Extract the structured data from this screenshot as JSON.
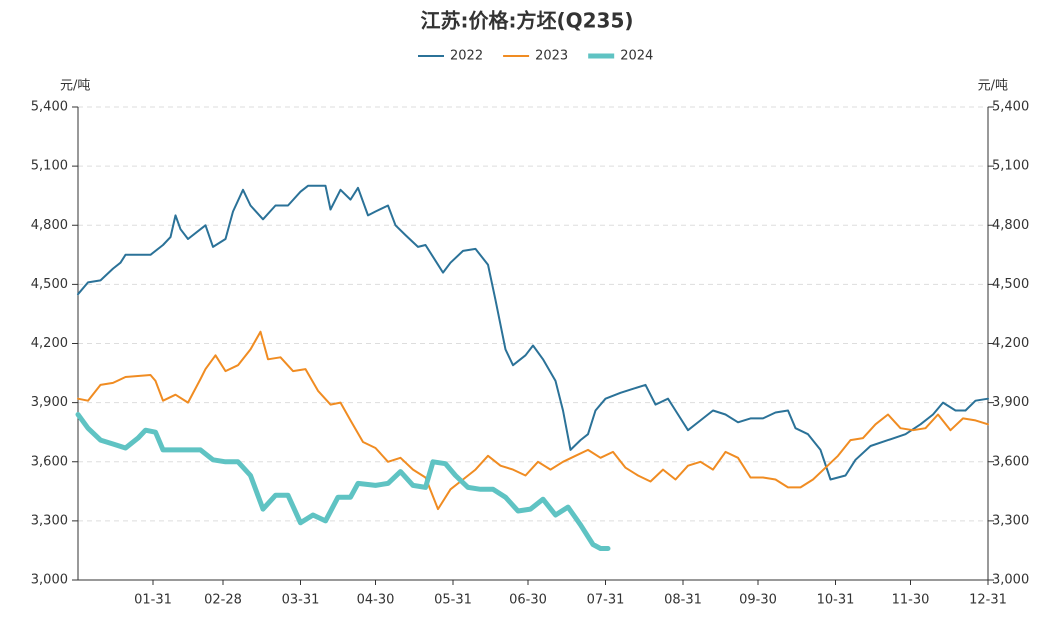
{
  "chart_data": {
    "type": "line",
    "title": "江苏:价格:方坯(Q235)",
    "y_label": "元/吨",
    "y2_label": "元/吨",
    "xlim": [
      1,
      365
    ],
    "xticks": [
      {
        "value": 31,
        "label": "01-31"
      },
      {
        "value": 59,
        "label": "02-28"
      },
      {
        "value": 90,
        "label": "03-31"
      },
      {
        "value": 120,
        "label": "04-30"
      },
      {
        "value": 151,
        "label": "05-31"
      },
      {
        "value": 181,
        "label": "06-30"
      },
      {
        "value": 212,
        "label": "07-31"
      },
      {
        "value": 243,
        "label": "08-31"
      },
      {
        "value": 273,
        "label": "09-30"
      },
      {
        "value": 304,
        "label": "10-31"
      },
      {
        "value": 334,
        "label": "11-30"
      },
      {
        "value": 365,
        "label": "12-31"
      }
    ],
    "ylim": [
      3000,
      5400
    ],
    "yticks": [
      {
        "value": 3000,
        "label": "3,000"
      },
      {
        "value": 3300,
        "label": "3,300"
      },
      {
        "value": 3600,
        "label": "3,600"
      },
      {
        "value": 3900,
        "label": "3,900"
      },
      {
        "value": 4200,
        "label": "4,200"
      },
      {
        "value": 4500,
        "label": "4,500"
      },
      {
        "value": 4800,
        "label": "4,800"
      },
      {
        "value": 5100,
        "label": "5,100"
      },
      {
        "value": 5400,
        "label": "5,400"
      }
    ],
    "y2lim": [
      3000,
      5400
    ],
    "y2ticks": [
      {
        "value": 3000,
        "label": "3,000"
      },
      {
        "value": 3300,
        "label": "3,300"
      },
      {
        "value": 3600,
        "label": "3,600"
      },
      {
        "value": 3900,
        "label": "3,900"
      },
      {
        "value": 4200,
        "label": "4,200"
      },
      {
        "value": 4500,
        "label": "4,500"
      },
      {
        "value": 4800,
        "label": "4,800"
      },
      {
        "value": 5100,
        "label": "5,100"
      },
      {
        "value": 5400,
        "label": "5,400"
      }
    ],
    "grid": true,
    "legend": "top",
    "series": [
      {
        "name": "2022",
        "color": "#2b7298",
        "line_width": 2,
        "x": [
          1,
          5,
          10,
          15,
          18,
          20,
          30,
          35,
          38,
          40,
          42,
          45,
          50,
          52,
          55,
          60,
          63,
          67,
          70,
          75,
          80,
          85,
          90,
          93,
          100,
          102,
          106,
          110,
          113,
          117,
          120,
          125,
          128,
          132,
          137,
          140,
          145,
          147,
          150,
          155,
          160,
          165,
          168,
          172,
          175,
          180,
          183,
          187,
          192,
          195,
          198,
          202,
          205,
          208,
          212,
          218,
          223,
          228,
          232,
          237,
          240,
          245,
          250,
          255,
          260,
          265,
          270,
          275,
          280,
          285,
          288,
          293,
          298,
          302,
          308,
          312,
          318,
          325,
          332,
          338,
          343,
          347,
          352,
          356,
          360,
          365
        ],
        "values": [
          4450,
          4510,
          4520,
          4580,
          4610,
          4650,
          4650,
          4700,
          4740,
          4850,
          4780,
          4730,
          4780,
          4800,
          4690,
          4730,
          4870,
          4980,
          4900,
          4830,
          4900,
          4900,
          4970,
          5000,
          5000,
          4880,
          4980,
          4930,
          4990,
          4850,
          4870,
          4900,
          4800,
          4750,
          4690,
          4700,
          4600,
          4560,
          4610,
          4670,
          4680,
          4600,
          4420,
          4170,
          4090,
          4140,
          4190,
          4120,
          4010,
          3860,
          3660,
          3710,
          3740,
          3860,
          3920,
          3950,
          3970,
          3990,
          3890,
          3920,
          3860,
          3760,
          3810,
          3860,
          3840,
          3800,
          3820,
          3820,
          3850,
          3860,
          3770,
          3740,
          3660,
          3510,
          3530,
          3610,
          3680,
          3710,
          3740,
          3790,
          3840,
          3900,
          3860,
          3860,
          3910,
          3920
        ]
      },
      {
        "name": "2023",
        "color": "#f08c22",
        "line_width": 2,
        "x": [
          1,
          5,
          10,
          15,
          20,
          30,
          32,
          35,
          40,
          45,
          50,
          52,
          56,
          60,
          65,
          70,
          74,
          77,
          82,
          87,
          92,
          97,
          102,
          106,
          110,
          115,
          120,
          125,
          130,
          135,
          140,
          145,
          150,
          155,
          160,
          165,
          170,
          175,
          180,
          185,
          190,
          195,
          200,
          205,
          210,
          215,
          220,
          225,
          230,
          235,
          240,
          245,
          250,
          255,
          260,
          265,
          270,
          275,
          280,
          285,
          290,
          295,
          300,
          305,
          310,
          315,
          320,
          325,
          330,
          335,
          340,
          345,
          350,
          355,
          360,
          365
        ],
        "values": [
          3920,
          3910,
          3990,
          4000,
          4030,
          4040,
          4010,
          3910,
          3940,
          3900,
          4020,
          4070,
          4140,
          4060,
          4090,
          4170,
          4260,
          4120,
          4130,
          4060,
          4070,
          3960,
          3890,
          3900,
          3810,
          3700,
          3670,
          3600,
          3620,
          3560,
          3520,
          3360,
          3460,
          3510,
          3560,
          3630,
          3580,
          3560,
          3530,
          3600,
          3560,
          3600,
          3630,
          3660,
          3620,
          3650,
          3570,
          3530,
          3500,
          3560,
          3510,
          3580,
          3600,
          3560,
          3650,
          3620,
          3520,
          3520,
          3510,
          3470,
          3470,
          3510,
          3570,
          3630,
          3710,
          3720,
          3790,
          3840,
          3770,
          3760,
          3770,
          3840,
          3760,
          3820,
          3810,
          3790
        ]
      },
      {
        "name": "2024",
        "color": "#5fc3c3",
        "line_width": 5,
        "x": [
          1,
          5,
          10,
          15,
          20,
          25,
          28,
          32,
          35,
          40,
          50,
          55,
          60,
          65,
          70,
          75,
          80,
          85,
          90,
          95,
          100,
          105,
          110,
          113,
          120,
          125,
          130,
          135,
          140,
          143,
          148,
          152,
          157,
          162,
          167,
          172,
          177,
          182,
          187,
          192,
          197,
          202,
          207,
          210,
          213
        ],
        "values": [
          3840,
          3770,
          3710,
          3690,
          3670,
          3720,
          3760,
          3750,
          3660,
          3660,
          3660,
          3610,
          3600,
          3600,
          3530,
          3360,
          3430,
          3430,
          3290,
          3330,
          3300,
          3420,
          3420,
          3490,
          3480,
          3490,
          3550,
          3480,
          3470,
          3600,
          3590,
          3530,
          3470,
          3460,
          3460,
          3420,
          3350,
          3360,
          3410,
          3330,
          3370,
          3280,
          3180,
          3160,
          3160
        ]
      }
    ]
  }
}
